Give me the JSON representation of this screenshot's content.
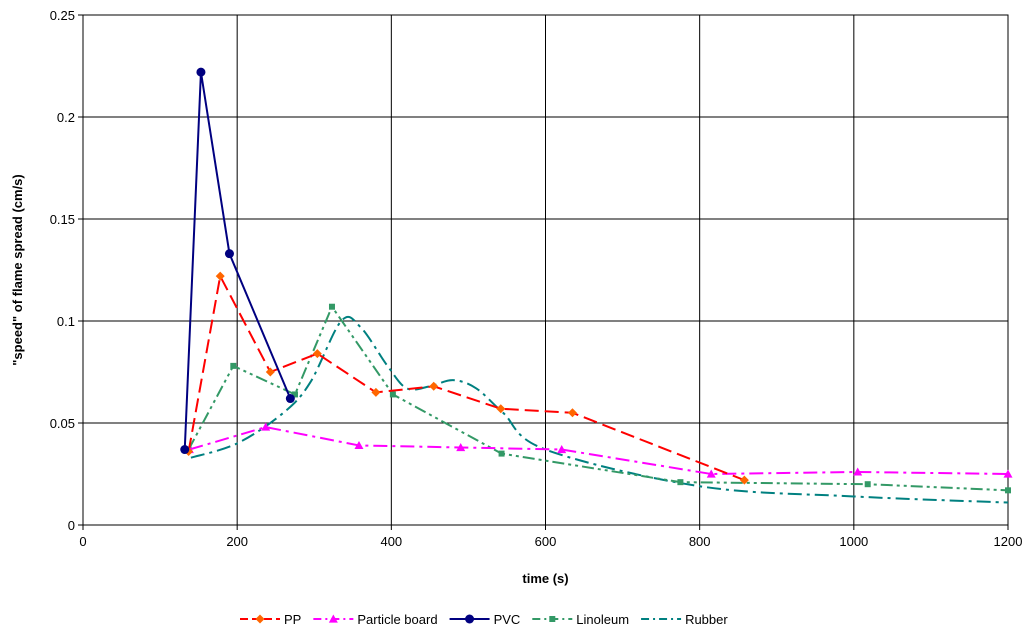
{
  "chart_data": {
    "type": "line",
    "title": "",
    "xlabel": "time (s)",
    "ylabel": "\"speed\" of flame spread (cm/s)",
    "xlim": [
      0,
      1200
    ],
    "ylim": [
      0,
      0.25
    ],
    "x_ticks": [
      0,
      200,
      400,
      600,
      800,
      1000,
      1200
    ],
    "y_ticks": [
      0,
      0.05,
      0.1,
      0.15,
      0.2,
      0.25
    ],
    "x_tick_labels": [
      "0",
      "200",
      "400",
      "600",
      "800",
      "1000",
      "1200"
    ],
    "y_tick_labels": [
      "0",
      "0.05",
      "0.1",
      "0.15",
      "0.2",
      "0.25"
    ],
    "grid": true,
    "legend_position": "bottom",
    "series": [
      {
        "name": "PP",
        "color": "#ff0000",
        "marker_color": "#ff6600",
        "dash": "long-dash",
        "marker": "diamond",
        "smooth": false,
        "show_markers": true,
        "points": [
          [
            137,
            0.036
          ],
          [
            178,
            0.122
          ],
          [
            243,
            0.075
          ],
          [
            304,
            0.084
          ],
          [
            380,
            0.065
          ],
          [
            455,
            0.068
          ],
          [
            542,
            0.057
          ],
          [
            635,
            0.055
          ],
          [
            858,
            0.022
          ]
        ]
      },
      {
        "name": "Particle board",
        "color": "#ff00ff",
        "marker_color": "#ff00ff",
        "dash": "dash-dot",
        "marker": "triangle",
        "smooth": false,
        "show_markers": true,
        "points": [
          [
            138,
            0.037
          ],
          [
            237,
            0.048
          ],
          [
            358,
            0.039
          ],
          [
            490,
            0.038
          ],
          [
            621,
            0.037
          ],
          [
            815,
            0.025
          ],
          [
            1005,
            0.026
          ],
          [
            1200,
            0.025
          ]
        ]
      },
      {
        "name": "PVC",
        "color": "#000080",
        "marker_color": "#000080",
        "dash": "solid",
        "marker": "circle",
        "smooth": false,
        "show_markers": true,
        "points": [
          [
            132,
            0.037
          ],
          [
            153,
            0.222
          ],
          [
            190,
            0.133
          ],
          [
            269,
            0.062
          ]
        ]
      },
      {
        "name": "Linoleum",
        "color": "#339966",
        "marker_color": "#339966",
        "dash": "dash-dot-dot",
        "marker": "square",
        "smooth": false,
        "show_markers": true,
        "points": [
          [
            137,
            0.037
          ],
          [
            195,
            0.078
          ],
          [
            275,
            0.064
          ],
          [
            323,
            0.107
          ],
          [
            402,
            0.064
          ],
          [
            543,
            0.035
          ],
          [
            775,
            0.021
          ],
          [
            1018,
            0.02
          ],
          [
            1210,
            0.017
          ]
        ]
      },
      {
        "name": "Rubber",
        "color": "#008080",
        "marker_color": "#008080",
        "dash": "dash-dot",
        "marker": "none",
        "smooth": true,
        "show_markers": false,
        "points": [
          [
            140,
            0.033
          ],
          [
            200,
            0.04
          ],
          [
            260,
            0.055
          ],
          [
            295,
            0.07
          ],
          [
            335,
            0.1
          ],
          [
            360,
            0.097
          ],
          [
            395,
            0.078
          ],
          [
            420,
            0.067
          ],
          [
            450,
            0.068
          ],
          [
            480,
            0.071
          ],
          [
            510,
            0.067
          ],
          [
            545,
            0.055
          ],
          [
            600,
            0.037
          ],
          [
            800,
            0.019
          ],
          [
            1000,
            0.014
          ],
          [
            1200,
            0.011
          ]
        ]
      }
    ]
  }
}
